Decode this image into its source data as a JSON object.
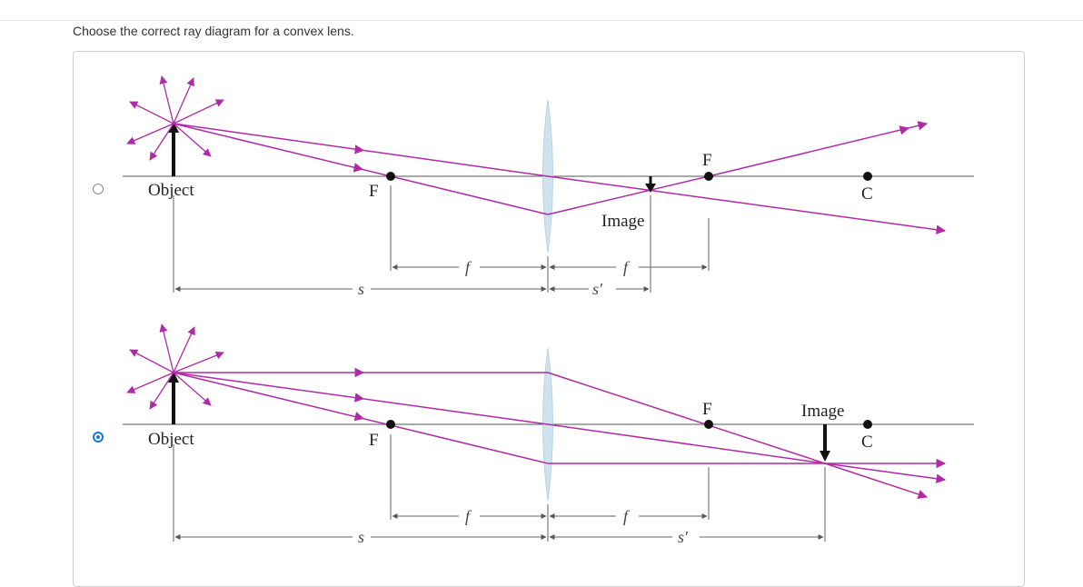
{
  "question": {
    "text": "Choose the correct ray diagram for a convex lens."
  },
  "options": [
    {
      "selected": false,
      "labels": {
        "object": "Object",
        "focal_left": "F",
        "focal_right": "F",
        "center": "C",
        "image": "Image",
        "s": "s",
        "f_left": "f",
        "f_right": "f",
        "s_prime": "s′"
      }
    },
    {
      "selected": true,
      "labels": {
        "object": "Object",
        "focal_left": "F",
        "focal_right": "F",
        "center": "C",
        "image": "Image",
        "s": "s",
        "f_left": "f",
        "f_right": "f",
        "s_prime": "s′"
      }
    }
  ],
  "colors": {
    "ray": "#b02aa6",
    "lens": "#cfe3ef",
    "axis": "#777777",
    "radio_selected": "#1a73e8"
  }
}
